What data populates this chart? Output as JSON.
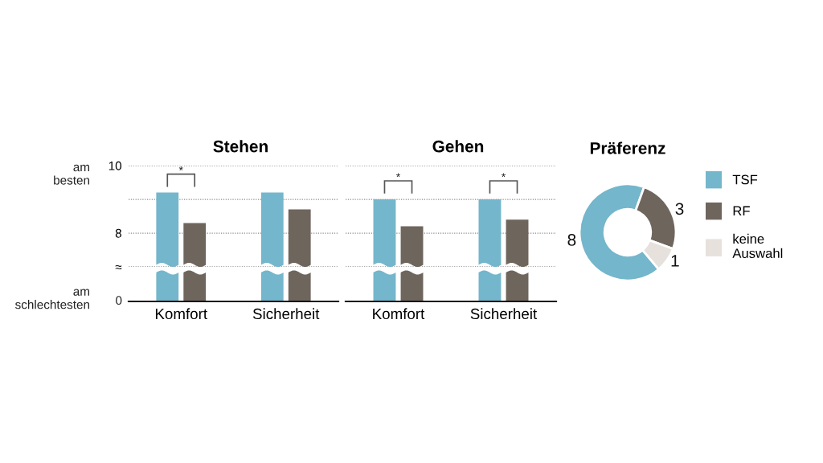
{
  "chart_data": [
    {
      "type": "bar",
      "title": "Stehen",
      "categories": [
        "Komfort",
        "Sicherheit"
      ],
      "series": [
        {
          "color": "#74b6cb",
          "values": [
            9.2,
            9.2
          ]
        },
        {
          "color": "#6e655c",
          "values": [
            8.3,
            8.7
          ]
        }
      ],
      "ylim": [
        7,
        10
      ],
      "yticks": [
        {
          "value": 7,
          "label": "≈"
        },
        8,
        {
          "value": 9,
          "label": null
        },
        10
      ],
      "grid": "y",
      "annotations": [
        "am\nbesten",
        "0",
        "am\nschlechtesten",
        "*"
      ]
    },
    {
      "type": "bar",
      "title": "Gehen",
      "categories": [
        "Komfort",
        "Sicherheit"
      ],
      "series": [
        {
          "color": "#74b6cb",
          "values": [
            9.0,
            9.0
          ]
        },
        {
          "color": "#6e655c",
          "values": [
            8.2,
            8.4
          ]
        }
      ],
      "ylim": [
        7,
        10
      ],
      "yticks": [
        7,
        8,
        9,
        10
      ],
      "grid": "y",
      "tick_labels": "x",
      "annotations": [
        "*",
        "*"
      ]
    },
    {
      "type": "donut",
      "title": "Präferenz",
      "categories": [
        "TSF",
        "RF",
        "keine\nAuswahl"
      ],
      "values": [
        8,
        3,
        1
      ],
      "colors": [
        "#74b6cb",
        "#6e655c",
        "#e6e1dc"
      ],
      "data_labels": true,
      "legend": "right"
    }
  ]
}
